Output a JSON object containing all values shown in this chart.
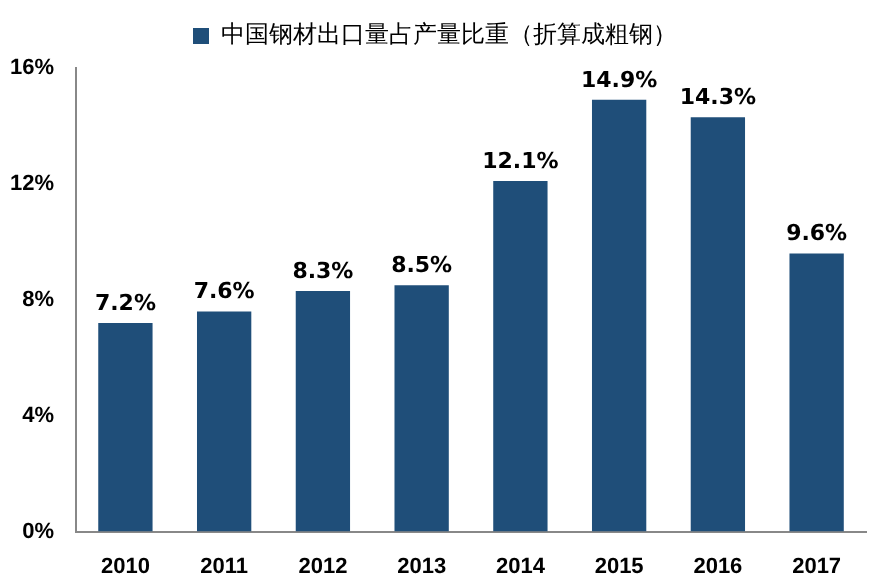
{
  "chart_data": {
    "type": "bar",
    "categories": [
      "2010",
      "2011",
      "2012",
      "2013",
      "2014",
      "2015",
      "2016",
      "2017"
    ],
    "series": [
      {
        "name": "中国钢材出口量占产量比重（折算成粗钢）",
        "color": "#1f4e79",
        "values": [
          7.2,
          7.6,
          8.3,
          8.5,
          12.1,
          14.9,
          14.3,
          9.6
        ],
        "value_labels": [
          "7.2%",
          "7.6%",
          "8.3%",
          "8.5%",
          "12.1%",
          "14.9%",
          "14.3%",
          "9.6%"
        ]
      }
    ],
    "ylim": [
      0,
      16
    ],
    "yticks": [
      {
        "value": 0,
        "label": "0%"
      },
      {
        "value": 4,
        "label": "4%"
      },
      {
        "value": 8,
        "label": "8%"
      },
      {
        "value": 12,
        "label": "12%"
      },
      {
        "value": 16,
        "label": "16%"
      }
    ],
    "grid": false,
    "legend": "top"
  }
}
